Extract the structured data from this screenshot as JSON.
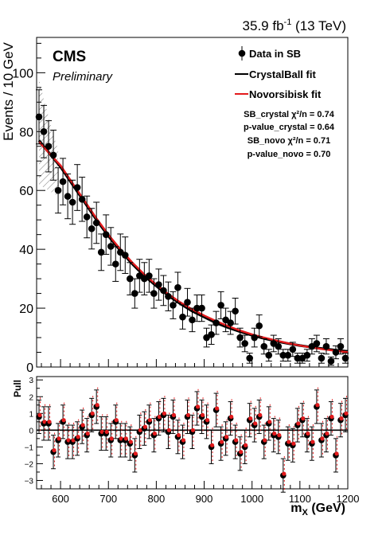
{
  "chart_data": [
    {
      "type": "scatter",
      "lumi_label": "35.9 fb",
      "lumi_exp": "-1",
      "lumi_energy": " (13 TeV)",
      "experiment": "CMS",
      "status": "Preliminary",
      "ylabel": "Events / 10 GeV",
      "xlim": [
        550,
        1200
      ],
      "ylim": [
        0,
        112
      ],
      "yticks": [
        "0",
        "20",
        "40",
        "60",
        "80",
        "100"
      ],
      "legend": {
        "data": "Data in SB",
        "crystal": "CrystalBall fit",
        "novo": "Novorsibisk fit"
      },
      "stats": {
        "sb_crystal": "SB_crystal  χ²/n = 0.74",
        "pvalue_crystal": "p-value_crystal = 0.64",
        "sb_novo": "SB_novo  χ²/n = 0.71",
        "pvalue_novo": "p-value_novo = 0.70"
      },
      "colors": {
        "crystal": "#000000",
        "novo": "#e31a1c",
        "data": "#000000"
      },
      "fit_crystal": {
        "x": [
          555,
          580,
          600,
          625,
          650,
          675,
          700,
          725,
          750,
          775,
          800,
          825,
          850,
          875,
          900,
          925,
          950,
          975,
          1000,
          1025,
          1050,
          1075,
          1100,
          1125,
          1150,
          1175,
          1200
        ],
        "y": [
          77,
          72,
          68,
          62,
          56,
          50,
          44.5,
          39.5,
          35,
          31,
          27.5,
          24.3,
          21.5,
          19,
          17,
          15,
          13.4,
          12,
          10.8,
          9.7,
          8.8,
          8,
          7.3,
          6.7,
          6.2,
          5.7,
          5.3
        ]
      },
      "fit_novo": {
        "x": [
          555,
          580,
          600,
          625,
          650,
          675,
          700,
          725,
          750,
          775,
          800,
          825,
          850,
          875,
          900,
          925,
          950,
          975,
          1000,
          1025,
          1050,
          1075,
          1100,
          1125,
          1150,
          1175,
          1200
        ],
        "y": [
          76.5,
          72,
          68.5,
          62.5,
          56.5,
          50.5,
          45,
          40,
          35.5,
          31.5,
          28,
          24.8,
          22,
          19.6,
          17.5,
          15.6,
          13.9,
          12.4,
          11.1,
          10,
          9,
          8.1,
          7.3,
          6.6,
          6,
          5.5,
          5
        ]
      },
      "points": {
        "x": [
          555,
          565,
          575,
          585,
          595,
          605,
          615,
          625,
          635,
          645,
          655,
          665,
          675,
          685,
          695,
          705,
          715,
          725,
          735,
          745,
          755,
          765,
          775,
          785,
          795,
          805,
          815,
          825,
          835,
          845,
          855,
          865,
          875,
          885,
          895,
          905,
          915,
          925,
          935,
          945,
          955,
          965,
          975,
          985,
          995,
          1005,
          1015,
          1025,
          1035,
          1045,
          1055,
          1065,
          1075,
          1085,
          1095,
          1105,
          1115,
          1125,
          1135,
          1145,
          1155,
          1165,
          1175,
          1185,
          1195
        ],
        "y": [
          85,
          80,
          75,
          72,
          60,
          63,
          58,
          56,
          61,
          57,
          51,
          47,
          49,
          39,
          45,
          41,
          35,
          39,
          38,
          30,
          25,
          31,
          30,
          31,
          25,
          28,
          26,
          24,
          21,
          27,
          17,
          22,
          16,
          20,
          20,
          10,
          11,
          15,
          21,
          16,
          15,
          19,
          10,
          8,
          3,
          10,
          14,
          7,
          4,
          8,
          7,
          4,
          4,
          6,
          3,
          3,
          4,
          7,
          8,
          3,
          7,
          2,
          5,
          7,
          3
        ],
        "err": [
          9.2,
          8.9,
          8.7,
          8.5,
          7.7,
          7.9,
          7.6,
          7.5,
          7.8,
          7.5,
          7.1,
          6.9,
          7,
          6.2,
          6.7,
          6.4,
          5.9,
          6.2,
          6.2,
          5.5,
          5,
          5.6,
          5.5,
          5.6,
          5,
          5.3,
          5.1,
          4.9,
          4.6,
          5.2,
          4.1,
          4.7,
          4,
          4.5,
          4.5,
          3.2,
          3.3,
          3.9,
          4.6,
          4,
          3.9,
          4.4,
          3.2,
          2.8,
          1.7,
          3.2,
          3.7,
          2.6,
          2,
          2.8,
          2.6,
          2,
          2,
          2.4,
          1.7,
          1.7,
          2,
          2.6,
          2.8,
          1.7,
          2.6,
          1.4,
          2.2,
          2.6,
          1.7
        ]
      }
    },
    {
      "type": "scatter",
      "ylabel": "Pull",
      "xlabel": "m",
      "xlabel_sub": "X",
      "xlabel_unit": " (GeV)",
      "xlim": [
        550,
        1200
      ],
      "ylim": [
        -3.5,
        3.2
      ],
      "xticks": [
        "600",
        "700",
        "800",
        "900",
        "1000",
        "1100",
        "1200"
      ],
      "yticks": [
        "−3",
        "−2",
        "−1",
        "0",
        "1",
        "2",
        "3"
      ],
      "pull_crystal": [
        0.8,
        0.4,
        0.4,
        -1.3,
        -0.6,
        0.5,
        -0.7,
        -0.7,
        -0.5,
        0.2,
        -0.3,
        0.9,
        1.4,
        -0.2,
        -0.2,
        -0.6,
        0.5,
        -0.6,
        -0.6,
        -0.8,
        -1.5,
        -0.1,
        0.1,
        0.5,
        -0.3,
        0.7,
        0.9,
        -0.1,
        0.8,
        -0.4,
        -0.7,
        0.8,
        -0.1,
        1.3,
        0.8,
        0.5,
        -1.0,
        1.2,
        -0.8,
        -0.5,
        0.7,
        -0.7,
        -1.4,
        -1.0,
        0.6,
        0.3,
        0.8,
        -0.7,
        0.4,
        -0.3,
        -0.4,
        -2.7,
        -0.8,
        -0.9,
        0.3,
        0.6,
        -0.3,
        -0.8,
        1.4,
        -0.6,
        -0.3,
        0.7,
        -1.5,
        0.6,
        0.9
      ],
      "pull_novo": [
        0.9,
        0.5,
        0.5,
        -1.2,
        -0.5,
        0.6,
        -0.6,
        -0.6,
        -0.4,
        0.3,
        -0.2,
        1.0,
        1.5,
        -0.1,
        -0.1,
        -0.5,
        0.6,
        -0.5,
        -0.5,
        -0.7,
        -1.4,
        0.0,
        0.2,
        0.6,
        -0.2,
        0.8,
        1.0,
        0.0,
        0.9,
        -0.3,
        -0.6,
        0.9,
        0.0,
        1.4,
        0.9,
        0.6,
        -0.9,
        1.3,
        -0.7,
        -0.4,
        0.8,
        -0.6,
        -1.3,
        -0.9,
        0.7,
        0.4,
        0.9,
        -0.6,
        0.5,
        -0.2,
        -0.3,
        -2.6,
        -0.7,
        -0.8,
        0.4,
        0.7,
        -0.2,
        -0.7,
        1.5,
        -0.5,
        -0.2,
        0.8,
        -1.4,
        0.7,
        1.0
      ]
    }
  ]
}
